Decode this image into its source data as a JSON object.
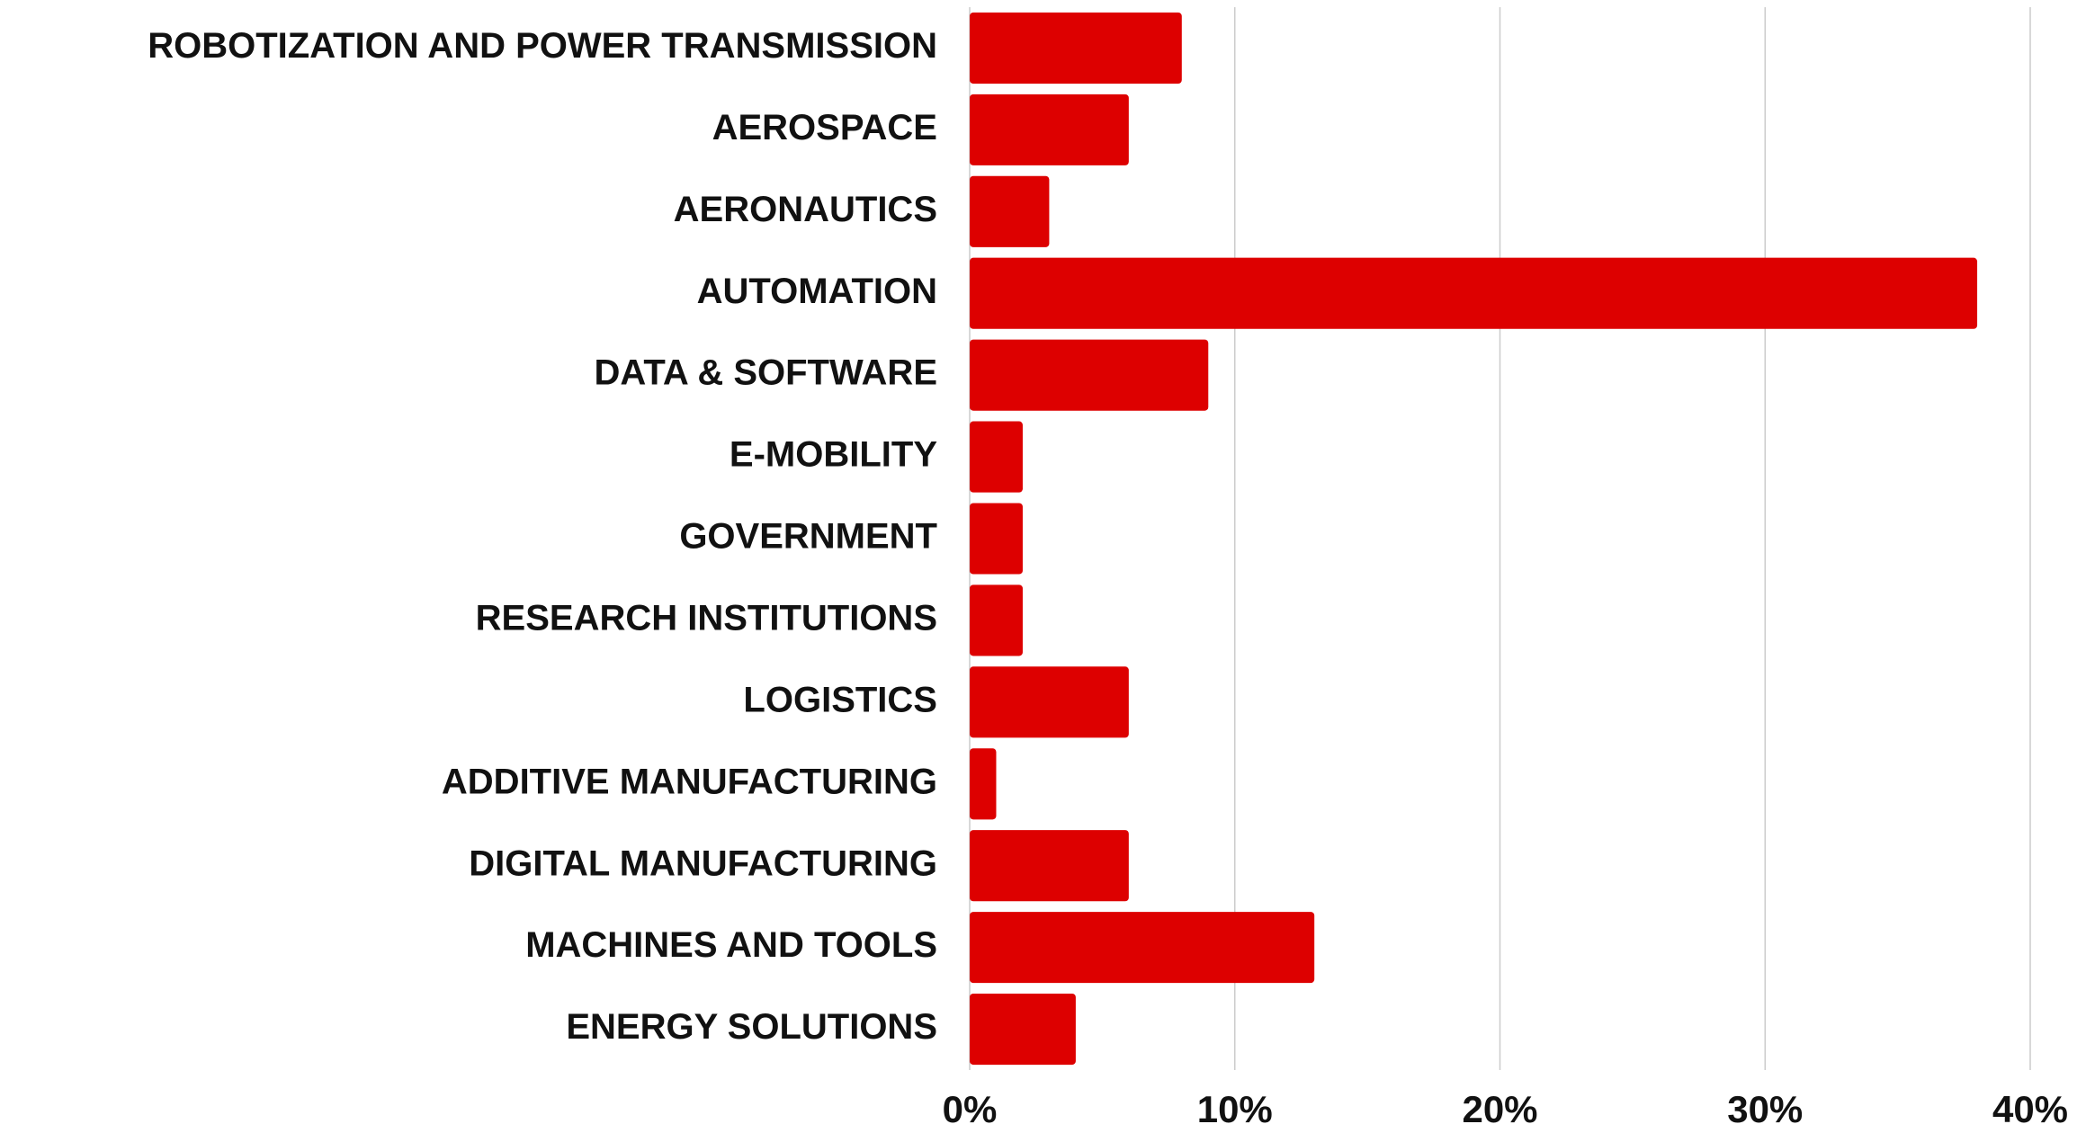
{
  "chart_data": {
    "type": "bar",
    "orientation": "horizontal",
    "categories": [
      "ROBOTIZATION AND POWER TRANSMISSION",
      "AEROSPACE",
      "AERONAUTICS",
      "AUTOMATION",
      "DATA & SOFTWARE",
      "E-MOBILITY",
      "GOVERNMENT",
      "RESEARCH INSTITUTIONS",
      "LOGISTICS",
      "ADDITIVE MANUFACTURING",
      "DIGITAL MANUFACTURING",
      "MACHINES AND TOOLS",
      "ENERGY SOLUTIONS"
    ],
    "values": [
      8,
      6,
      3,
      38,
      9,
      2,
      2,
      2,
      6,
      1,
      6,
      13,
      4
    ],
    "color": "#dd0000",
    "xlim": [
      0,
      40
    ],
    "xticks": [
      {
        "value": 0,
        "label": "0%"
      },
      {
        "value": 10,
        "label": "10%"
      },
      {
        "value": 20,
        "label": "20%"
      },
      {
        "value": 30,
        "label": "30%"
      },
      {
        "value": 40,
        "label": "40%"
      }
    ],
    "grid": true
  }
}
